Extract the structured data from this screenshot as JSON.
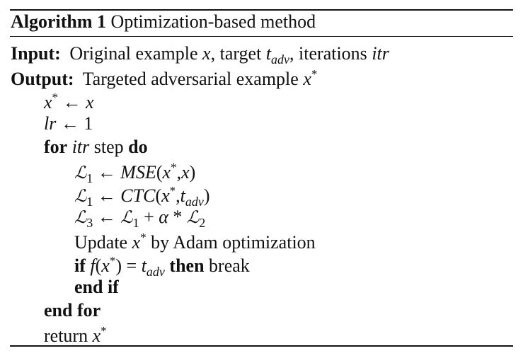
{
  "algorithm": {
    "label": "Algorithm 1",
    "title": "Optimization-based method"
  },
  "input": {
    "keyword": "Input:",
    "text_a": "Original example",
    "var_x": "x",
    "text_b": ", target",
    "t": "t",
    "t_sub": "adv",
    "text_c": ", iterations",
    "itr": "itr"
  },
  "output": {
    "keyword": "Output:",
    "text": "Targeted adversarial example",
    "x": "x",
    "star": "*"
  },
  "steps": {
    "init_x": {
      "lhs": "x",
      "star": "*",
      "arrow": "←",
      "rhs": "x"
    },
    "init_lr": {
      "lhs": "lr",
      "arrow": "←",
      "rhs": "1"
    },
    "loop": {
      "kw_for": "for",
      "var": "itr",
      "text": "step",
      "kw_do": "do"
    },
    "l1_mse": {
      "L": "ℒ",
      "sub": "1",
      "arrow": "←",
      "fn": "MSE",
      "open": "(",
      "x": "x",
      "star": "*",
      "comma": ",",
      "arg": "x",
      "close": ")"
    },
    "l1_ctc": {
      "L": "ℒ",
      "sub": "1",
      "arrow": "←",
      "fn": "CTC",
      "open": "(",
      "x": "x",
      "star": "*",
      "comma": ",",
      "t": "t",
      "t_sub": "adv",
      "close": ")"
    },
    "l3": {
      "L3": "ℒ",
      "sub3": "3",
      "arrow": "←",
      "L1": "ℒ",
      "sub1": "1",
      "plus": "+",
      "alpha": "α",
      "times": "*",
      "L2": "ℒ",
      "sub2": "2"
    },
    "update": {
      "text_a": "Update",
      "x": "x",
      "star": "*",
      "text_b": "by Adam optimization"
    },
    "cond": {
      "kw_if": "if",
      "f": "f",
      "open": "(",
      "x": "x",
      "star": "*",
      "close": ")",
      "eq": "=",
      "t": "t",
      "t_sub": "adv",
      "kw_then": "then",
      "text": "break"
    },
    "end_if": "end if",
    "end_for": "end for",
    "ret": {
      "text": "return",
      "x": "x",
      "star": "*"
    }
  }
}
